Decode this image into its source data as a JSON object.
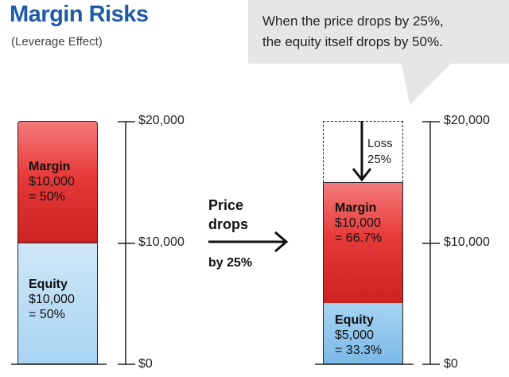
{
  "header": {
    "title": "Margin Risks",
    "subtitle": "(Leverage Effect)"
  },
  "callout": {
    "line1": "When the price drops by 25%,",
    "line2": "the equity itself drops by 50%."
  },
  "left_column": {
    "margin": {
      "label": "Margin",
      "amount": "$10,000",
      "share": "= 50%"
    },
    "equity": {
      "label": "Equity",
      "amount": "$10,000",
      "share": "= 50%"
    }
  },
  "right_column": {
    "loss": {
      "label": "Loss",
      "share": "25%"
    },
    "margin": {
      "label": "Margin",
      "amount": "$10,000",
      "share": "= 66.7%"
    },
    "equity": {
      "label": "Equity",
      "amount": "$5,000",
      "share": "= 33.3%"
    }
  },
  "transition": {
    "line1": "Price",
    "line2": "drops",
    "amount": "by 25%"
  },
  "scale": {
    "ticks": [
      "$20,000",
      "$10,000",
      "$0"
    ]
  },
  "colors": {
    "title": "#1f5aa6",
    "margin": "#e63a3a",
    "equity": "#a8d4f2",
    "callout_bg": "#e6e6e6"
  }
}
